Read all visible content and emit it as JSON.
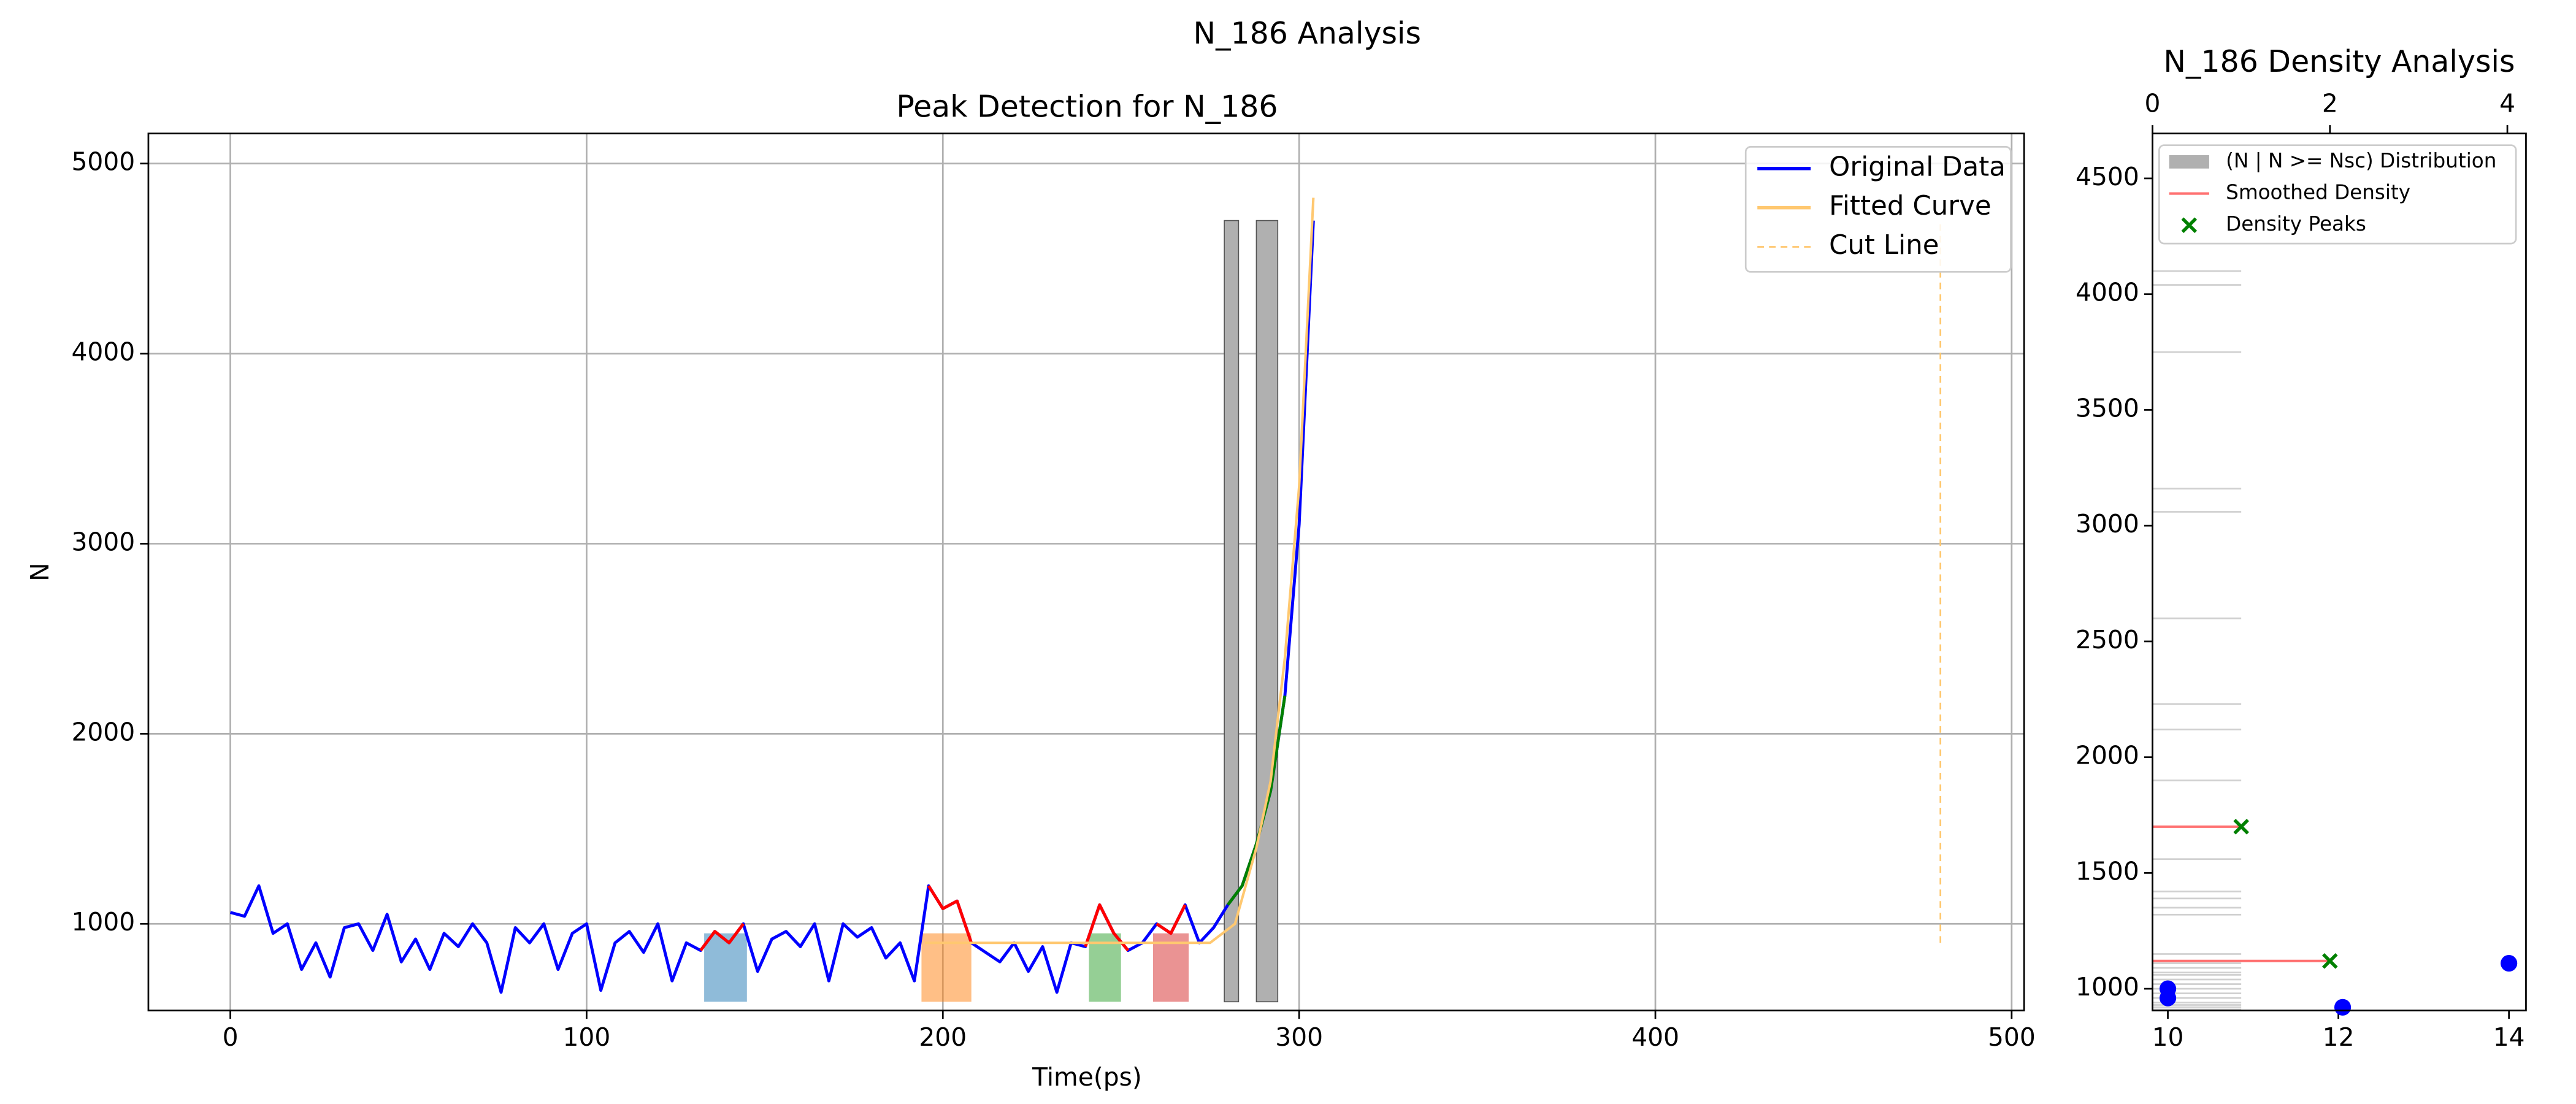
{
  "title": "N_186 Analysis",
  "chart_data": [
    {
      "type": "line",
      "title": "Peak Detection for N_186",
      "x_label": "Time(ps)",
      "y_label": "N",
      "xlim": [
        -23,
        503.5
      ],
      "ylim": [
        544,
        5158
      ],
      "xticks": [
        0,
        100,
        200,
        300,
        400,
        500
      ],
      "yticks": [
        1000,
        2000,
        3000,
        4000,
        5000
      ],
      "grid": true,
      "series": [
        {
          "name": "Original Data",
          "color": "#0000ff",
          "x": [
            0,
            4,
            8,
            12,
            16,
            20,
            24,
            28,
            32,
            36,
            40,
            44,
            48,
            52,
            56,
            60,
            64,
            68,
            72,
            76,
            80,
            84,
            88,
            92,
            96,
            100,
            104,
            108,
            112,
            116,
            120,
            124,
            128,
            132,
            136,
            140,
            144,
            148,
            152,
            156,
            160,
            164,
            168,
            172,
            176,
            180,
            184,
            188,
            192,
            196,
            200,
            204,
            208,
            212,
            216,
            220,
            224,
            228,
            232,
            236,
            240,
            244,
            248,
            252,
            256,
            260,
            264,
            268,
            272,
            276,
            280,
            284,
            288,
            292,
            296,
            300,
            304
          ],
          "values": [
            1060,
            1040,
            1200,
            950,
            1000,
            760,
            900,
            720,
            980,
            1000,
            860,
            1050,
            800,
            920,
            760,
            950,
            880,
            1000,
            900,
            640,
            980,
            900,
            1000,
            760,
            950,
            1000,
            650,
            900,
            960,
            850,
            1000,
            700,
            900,
            860,
            960,
            900,
            1000,
            750,
            920,
            960,
            880,
            1000,
            700,
            1000,
            930,
            980,
            820,
            900,
            700,
            1200,
            1080,
            1120,
            900,
            850,
            800,
            900,
            750,
            880,
            640,
            900,
            880,
            1100,
            950,
            860,
            900,
            1000,
            950,
            1100,
            900,
            980,
            1100,
            1200,
            1420,
            1700,
            2200,
            3100,
            4700
          ]
        },
        {
          "name": "Fitted Curve",
          "color": "#ffc870",
          "x": [
            195,
            220,
            250,
            275,
            282,
            288,
            292,
            296,
            300,
            304
          ],
          "values": [
            900,
            900,
            900,
            900,
            1000,
            1400,
            1750,
            2400,
            3300,
            4820
          ]
        },
        {
          "name": "Cut Line",
          "color": "#ffc870",
          "dashed": true,
          "x": [
            480,
            480
          ],
          "values": [
            900,
            4700
          ]
        }
      ],
      "highlights": [
        {
          "x": [
            132,
            146
          ],
          "color": "#ff0000"
        },
        {
          "x": [
            194,
            208
          ],
          "color": "#ff0000"
        },
        {
          "x": [
            240,
            252
          ],
          "color": "#ff0000"
        },
        {
          "x": [
            258,
            270
          ],
          "color": "#ff0000"
        },
        {
          "x": [
            280,
            296
          ],
          "color": "#008000"
        }
      ],
      "regions": [
        {
          "x": [
            133,
            145
          ],
          "y": [
            590,
            950
          ],
          "color": "#1f77b4"
        },
        {
          "x": [
            194,
            208
          ],
          "y": [
            590,
            950
          ],
          "color": "#ff7f0e"
        },
        {
          "x": [
            241,
            250
          ],
          "y": [
            590,
            950
          ],
          "color": "#2ca02c"
        },
        {
          "x": [
            259,
            269
          ],
          "y": [
            590,
            950
          ],
          "color": "#d62728"
        }
      ],
      "bars": {
        "color": "#b0b0b0",
        "x": [
          [
            279,
            283
          ],
          [
            288,
            294
          ]
        ],
        "bottom": 590,
        "values": [
          4700,
          4700
        ]
      }
    },
    {
      "type": "density",
      "title": "N_186 Density Analysis",
      "xlim": [
        0,
        4.21
      ],
      "xticks": [
        0,
        2,
        4
      ],
      "x2lim": [
        9.82,
        14.2
      ],
      "x2ticks": [
        10,
        12,
        14
      ],
      "ylim": [
        906,
        4694
      ],
      "yticks": [
        1000,
        1500,
        2000,
        2500,
        3000,
        3500,
        4000,
        4500
      ],
      "histogram": {
        "name": "(N | N >= Nsc) Distribution",
        "color": "#b0b0b0",
        "y": [
          4100,
          4040,
          3750,
          3160,
          3060,
          2600,
          2230,
          2120,
          1900,
          1700,
          1560,
          1420,
          1390,
          1350,
          1320,
          1150,
          1110,
          1090,
          1070,
          1060,
          1040,
          1020,
          1000,
          980,
          960,
          940,
          930,
          920,
          910
        ],
        "counts": [
          1,
          1,
          1,
          1,
          1,
          1,
          1,
          1,
          1,
          1,
          1,
          1,
          1,
          1,
          1,
          1,
          1,
          1,
          1,
          1,
          1,
          1,
          1,
          1,
          1,
          1,
          1,
          1,
          1
        ]
      },
      "smoothed": {
        "name": "Smoothed Density",
        "color": "#ff7070",
        "y": [
          1700,
          1120
        ],
        "values": [
          1,
          2
        ]
      },
      "peaks": {
        "name": "Density Peaks",
        "color": "#008000",
        "y": [
          1700,
          1120
        ],
        "values": [
          1,
          2
        ]
      },
      "points": {
        "color": "#0000ff",
        "x": [
          10,
          10,
          12.05,
          14
        ],
        "y": [
          1000,
          960,
          920,
          1110
        ]
      }
    }
  ]
}
